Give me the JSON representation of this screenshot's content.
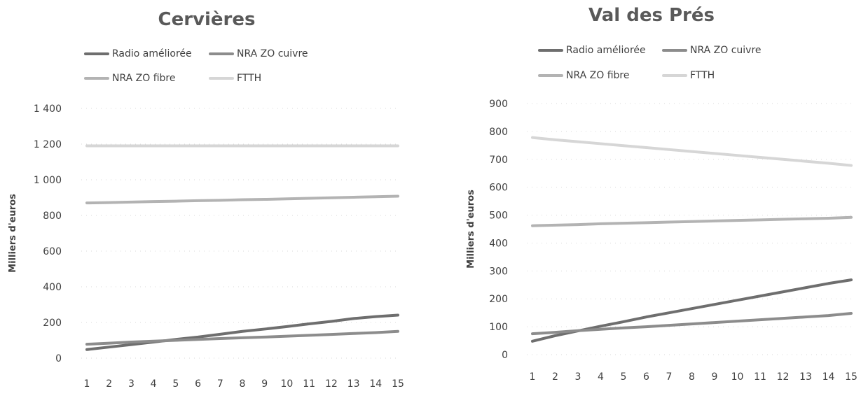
{
  "chart_data": [
    {
      "type": "line",
      "title": "Cervières",
      "xlabel": "",
      "ylabel": "Milliers d'euros",
      "x": [
        1,
        2,
        3,
        4,
        5,
        6,
        7,
        8,
        9,
        10,
        11,
        12,
        13,
        14,
        15
      ],
      "ylim": [
        0,
        1400
      ],
      "yticks": [
        0,
        200,
        400,
        600,
        800,
        1000,
        1200,
        1400
      ],
      "ytick_labels": [
        "0",
        "200",
        "400",
        "600",
        "800",
        "1 000",
        "1 200",
        "1 400"
      ],
      "grid": true,
      "legend_position": "top",
      "series": [
        {
          "name": "Radio améliorée",
          "color": "#6e6e6e",
          "values": [
            48,
            62,
            76,
            90,
            105,
            118,
            134,
            150,
            163,
            177,
            192,
            206,
            222,
            233,
            241
          ]
        },
        {
          "name": "NRA ZO cuivre",
          "color": "#8c8c8c",
          "values": [
            78,
            84,
            90,
            95,
            100,
            105,
            110,
            114,
            118,
            123,
            128,
            133,
            138,
            143,
            150
          ]
        },
        {
          "name": "NRA ZO fibre",
          "color": "#b3b3b3",
          "values": [
            870,
            872,
            875,
            878,
            880,
            883,
            885,
            888,
            890,
            893,
            896,
            899,
            902,
            905,
            908
          ]
        },
        {
          "name": "FTTH",
          "color": "#d6d6d6",
          "values": [
            1190,
            1190,
            1190,
            1190,
            1190,
            1190,
            1190,
            1190,
            1190,
            1190,
            1190,
            1190,
            1190,
            1190,
            1190
          ]
        }
      ]
    },
    {
      "type": "line",
      "title": "Val des Prés",
      "xlabel": "",
      "ylabel": "Milliers d'euros",
      "x": [
        1,
        2,
        3,
        4,
        5,
        6,
        7,
        8,
        9,
        10,
        11,
        12,
        13,
        14,
        15
      ],
      "ylim": [
        0,
        900
      ],
      "yticks": [
        0,
        100,
        200,
        300,
        400,
        500,
        600,
        700,
        800,
        900
      ],
      "ytick_labels": [
        "0",
        "100",
        "200",
        "300",
        "400",
        "500",
        "600",
        "700",
        "800",
        "900"
      ],
      "grid": true,
      "legend_position": "top",
      "series": [
        {
          "name": "Radio améliorée",
          "color": "#6e6e6e",
          "values": [
            48,
            68,
            85,
            102,
            118,
            135,
            150,
            165,
            180,
            195,
            210,
            225,
            240,
            255,
            268
          ]
        },
        {
          "name": "NRA ZO cuivre",
          "color": "#8c8c8c",
          "values": [
            75,
            80,
            86,
            91,
            96,
            100,
            105,
            110,
            115,
            120,
            125,
            130,
            135,
            140,
            148
          ]
        },
        {
          "name": "NRA ZO fibre",
          "color": "#b3b3b3",
          "values": [
            462,
            464,
            466,
            469,
            471,
            473,
            475,
            477,
            479,
            481,
            483,
            485,
            487,
            489,
            492
          ]
        },
        {
          "name": "FTTH",
          "color": "#d6d6d6",
          "values": [
            778,
            770,
            763,
            756,
            749,
            742,
            735,
            728,
            721,
            714,
            707,
            700,
            693,
            686,
            678
          ]
        }
      ]
    }
  ]
}
